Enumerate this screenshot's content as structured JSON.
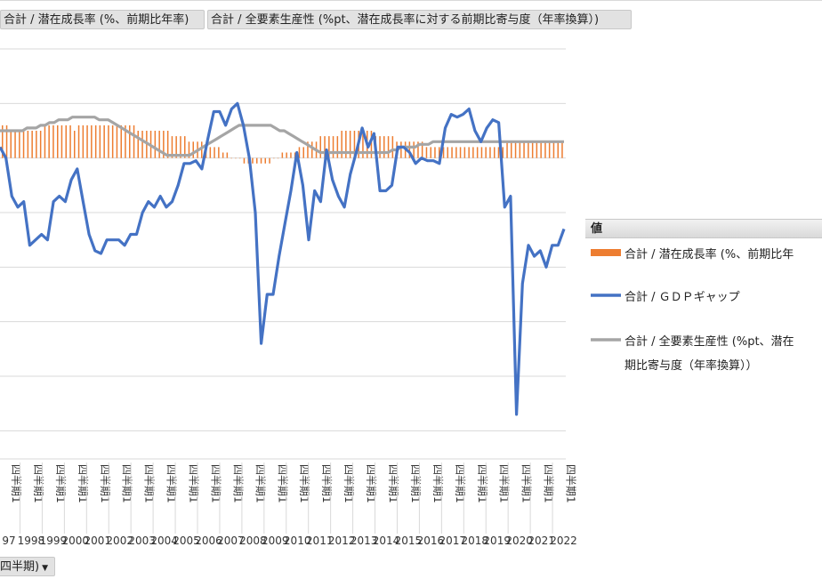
{
  "field_buttons": {
    "series1": "合計 / 潜在成長率 (%、前期比年率)",
    "series2": "合計 / 全要素生産性 (%pt、潜在成長率に対する前期比寄与度（年率換算）)"
  },
  "axis_button": {
    "label": "四半期)",
    "arrow": "▼"
  },
  "legend": {
    "header": "値",
    "items": [
      {
        "label": "合計 / 潜在成長率 (%、前期比年",
        "color": "#ED7D31"
      },
      {
        "label": "合計 / ＧＤＰギャップ",
        "color": "#4472C4"
      },
      {
        "label_line1": "合計 / 全要素生産性 (%pt、潜在",
        "label_line2": "期比寄与度（年率換算））",
        "color": "#A5A5A5"
      }
    ]
  },
  "chart_data": {
    "type": "bar+line",
    "x_label_row1": "四半期1",
    "years": [
      "97",
      "1998",
      "1999",
      "2000",
      "2001",
      "2002",
      "2003",
      "2004",
      "2005",
      "2006",
      "2007",
      "2008",
      "2009",
      "2010",
      "2011",
      "2012",
      "2013",
      "2014",
      "2015",
      "2016",
      "2017",
      "2018",
      "2019",
      "2020",
      "2021",
      "2022"
    ],
    "ylim": [
      -5.5,
      2.0
    ],
    "gridlines": [
      2,
      1,
      0,
      -1,
      -2,
      -3,
      -4,
      -5
    ],
    "series": [
      {
        "name": "合計 / 潜在成長率 (%、前期比年率)",
        "type": "bar",
        "color": "#ED7D31",
        "values": [
          0.6,
          0.6,
          0.5,
          0.5,
          0.5,
          0.5,
          0.5,
          0.5,
          0.5,
          0.5,
          0.6,
          0.6,
          0.6,
          0.6,
          0.6,
          0.6,
          0.6,
          0.5,
          0.6,
          0.6,
          0.6,
          0.6,
          0.6,
          0.6,
          0.6,
          0.6,
          0.6,
          0.6,
          0.6,
          0.6,
          0.6,
          0.6,
          0.5,
          0.5,
          0.5,
          0.5,
          0.5,
          0.5,
          0.5,
          0.5,
          0.4,
          0.4,
          0.4,
          0.4,
          0.3,
          0.3,
          0.3,
          0.3,
          0.2,
          0.2,
          0.2,
          0.2,
          0.1,
          0.1,
          0.0,
          0.0,
          0.0,
          -0.1,
          -0.1,
          -0.1,
          -0.1,
          -0.1,
          -0.1,
          -0.1,
          0.0,
          0.0,
          0.1,
          0.1,
          0.1,
          0.1,
          0.2,
          0.2,
          0.3,
          0.3,
          0.3,
          0.4,
          0.4,
          0.4,
          0.4,
          0.4,
          0.5,
          0.5,
          0.5,
          0.5,
          0.5,
          0.5,
          0.5,
          0.5,
          0.4,
          0.4,
          0.4,
          0.4,
          0.4,
          0.3,
          0.3,
          0.3,
          0.3,
          0.3,
          0.3,
          0.3,
          0.2,
          0.2,
          0.2,
          0.2,
          0.2,
          0.2,
          0.2,
          0.2,
          0.2,
          0.2,
          0.2,
          0.2,
          0.2,
          0.2,
          0.2,
          0.2,
          0.2,
          0.2,
          0.2,
          0.3,
          0.3,
          0.3,
          0.3,
          0.3,
          0.3,
          0.3,
          0.3,
          0.3,
          0.3,
          0.3,
          0.3,
          0.3,
          0.3
        ]
      },
      {
        "name": "合計 / ＧＤＰギャップ",
        "type": "line",
        "color": "#4472C4",
        "values": [
          0.2,
          0.0,
          -0.7,
          -0.9,
          -0.8,
          -1.6,
          -1.5,
          -1.4,
          -1.5,
          -0.8,
          -0.7,
          -0.8,
          -0.4,
          -0.2,
          -0.8,
          -1.4,
          -1.7,
          -1.75,
          -1.5,
          -1.5,
          -1.5,
          -1.6,
          -1.4,
          -1.4,
          -1.0,
          -0.8,
          -0.9,
          -0.7,
          -0.9,
          -0.8,
          -0.5,
          -0.1,
          -0.1,
          -0.05,
          -0.2,
          0.35,
          0.85,
          0.85,
          0.6,
          0.9,
          1.0,
          0.6,
          0.0,
          -1.0,
          -3.4,
          -2.5,
          -2.5,
          -1.8,
          -1.2,
          -0.6,
          0.1,
          -0.5,
          -1.5,
          -0.6,
          -0.8,
          0.15,
          -0.4,
          -0.7,
          -0.9,
          -0.3,
          0.1,
          0.55,
          0.2,
          0.45,
          -0.6,
          -0.6,
          -0.5,
          0.2,
          0.2,
          0.1,
          -0.1,
          0.0,
          -0.05,
          -0.05,
          -0.1,
          0.55,
          0.8,
          0.75,
          0.8,
          0.9,
          0.5,
          0.3,
          0.55,
          0.7,
          0.65,
          -0.9,
          -0.7,
          -4.7,
          -2.3,
          -1.6,
          -1.8,
          -1.7,
          -2.0,
          -1.6,
          -1.6,
          -1.3
        ]
      },
      {
        "name": "合計 / 全要素生産性 (%pt、潜在成長率に対する前期比寄与度（年率換算）)",
        "type": "line",
        "color": "#A5A5A5",
        "values": [
          0.5,
          0.5,
          0.5,
          0.5,
          0.5,
          0.5,
          0.55,
          0.55,
          0.55,
          0.6,
          0.6,
          0.65,
          0.65,
          0.7,
          0.7,
          0.7,
          0.75,
          0.75,
          0.75,
          0.75,
          0.75,
          0.75,
          0.7,
          0.7,
          0.7,
          0.65,
          0.6,
          0.55,
          0.5,
          0.45,
          0.4,
          0.35,
          0.3,
          0.25,
          0.2,
          0.15,
          0.1,
          0.05,
          0.05,
          0.05,
          0.05,
          0.05,
          0.05,
          0.1,
          0.15,
          0.2,
          0.25,
          0.3,
          0.35,
          0.4,
          0.45,
          0.5,
          0.55,
          0.6,
          0.6,
          0.6,
          0.6,
          0.6,
          0.6,
          0.6,
          0.6,
          0.55,
          0.5,
          0.5,
          0.45,
          0.4,
          0.35,
          0.3,
          0.25,
          0.2,
          0.15,
          0.1,
          0.1,
          0.1,
          0.1,
          0.1,
          0.1,
          0.1,
          0.1,
          0.1,
          0.1,
          0.1,
          0.1,
          0.1,
          0.1,
          0.1,
          0.1,
          0.15,
          0.15,
          0.2,
          0.2,
          0.2,
          0.2,
          0.25,
          0.25,
          0.25,
          0.3,
          0.3,
          0.3,
          0.3,
          0.3,
          0.3,
          0.3,
          0.3,
          0.3,
          0.3,
          0.3,
          0.3,
          0.3,
          0.3,
          0.3,
          0.3,
          0.3,
          0.3,
          0.3,
          0.3,
          0.3,
          0.3,
          0.3,
          0.3,
          0.3,
          0.3,
          0.3,
          0.3,
          0.3,
          0.3
        ]
      }
    ]
  }
}
